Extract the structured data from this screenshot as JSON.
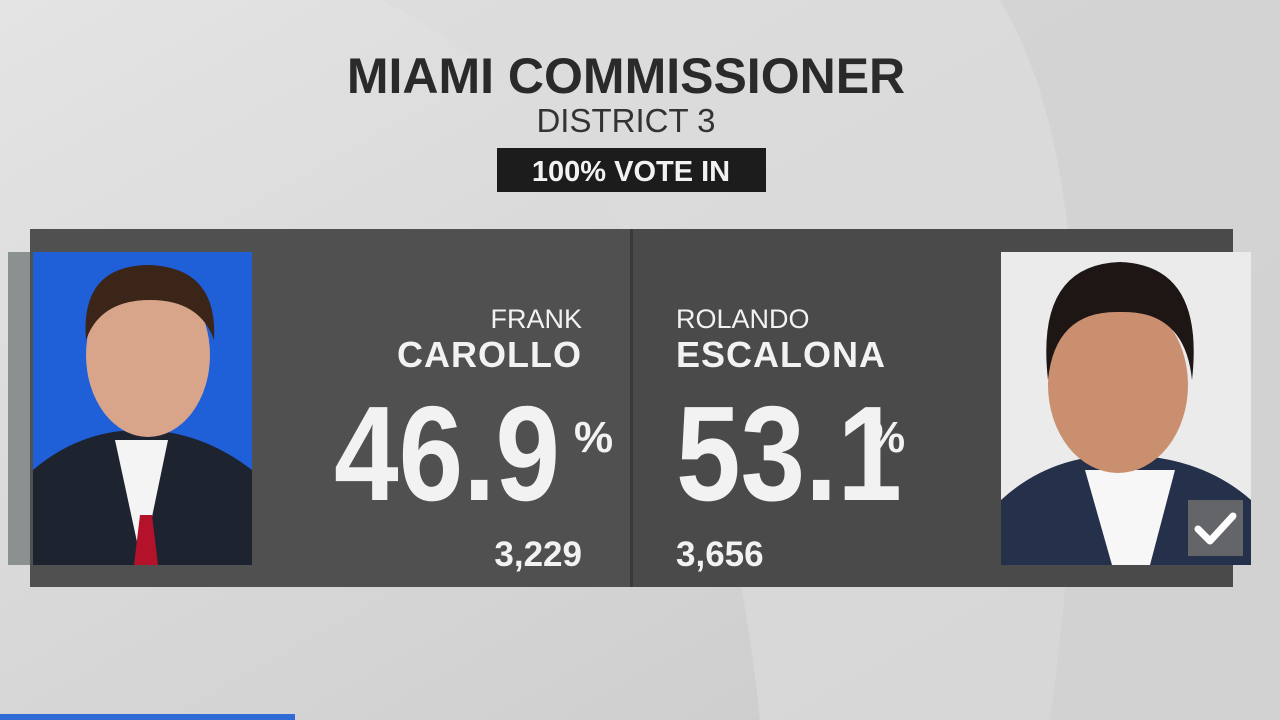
{
  "header": {
    "title": "MIAMI COMMISSIONER",
    "subtitle": "DISTRICT 3",
    "badge": "100% VOTE IN"
  },
  "candidates": [
    {
      "first_name": "FRANK",
      "last_name": "CAROLLO",
      "percent": "46.9",
      "percent_symbol": "%",
      "votes": "3,229",
      "winner": false
    },
    {
      "first_name": "ROLANDO",
      "last_name": "ESCALONA",
      "percent": "53.1",
      "percent_symbol": "%",
      "votes": "3,656",
      "winner": true
    }
  ]
}
